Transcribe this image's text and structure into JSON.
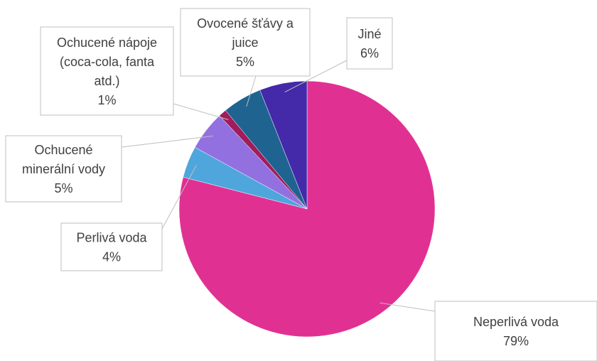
{
  "chart_data": {
    "type": "pie",
    "title": "",
    "slices": [
      {
        "label_lines": [
          "Neperlivá voda"
        ],
        "value": 79,
        "value_label": "79%",
        "color": "#e03193"
      },
      {
        "label_lines": [
          "Perlivá voda"
        ],
        "value": 4,
        "value_label": "4%",
        "color": "#4ea6dc"
      },
      {
        "label_lines": [
          "Ochucené",
          "minerální vody"
        ],
        "value": 5,
        "value_label": "5%",
        "color": "#9370e0"
      },
      {
        "label_lines": [
          "Ochucené nápoje",
          "(coca-cola, fanta",
          "atd.)"
        ],
        "value": 1,
        "value_label": "1%",
        "color": "#a01c5b"
      },
      {
        "label_lines": [
          "Ovocené šťávy a",
          "juice"
        ],
        "value": 5,
        "value_label": "5%",
        "color": "#1f6391"
      },
      {
        "label_lines": [
          "Jiné"
        ],
        "value": 6,
        "value_label": "6%",
        "color": "#4429a8"
      }
    ],
    "legend": "none",
    "data_labels": "callouts"
  }
}
